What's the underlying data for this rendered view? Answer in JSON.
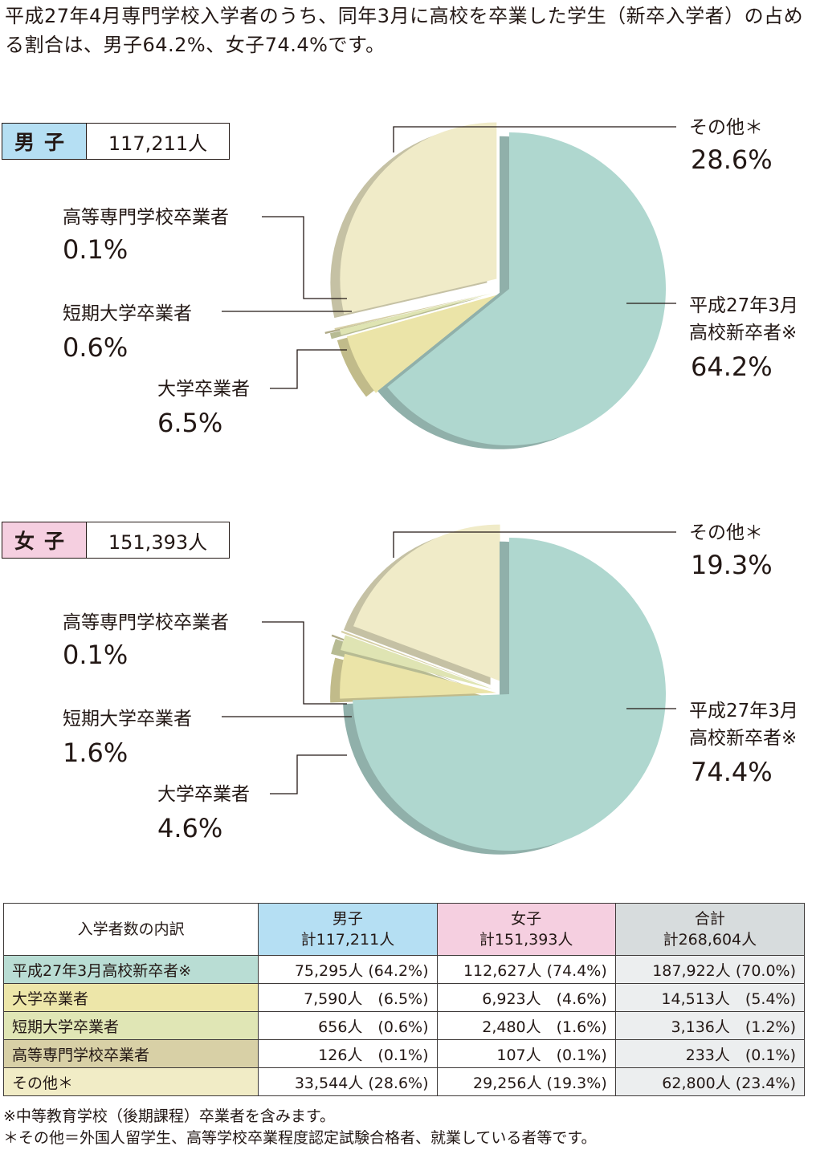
{
  "intro": "平成27年4月専門学校入学者のうち、同年3月に高校を卒業した学生（新卒入学者）の占める割合は、男子64.2%、女子74.4%です。",
  "colors": {
    "shinsotsu": "#afd7cf",
    "daigaku": "#ebe4a8",
    "tanki": "#dfe4b3",
    "kosen": "#d6cfa5",
    "sonota": "#f0ebc8",
    "male_badge": "#b5dff3",
    "female_badge": "#f5cfe0",
    "total_header": "#d7dcdd"
  },
  "chart_data": [
    {
      "type": "pie",
      "gender": "男子",
      "total_label": "117,211人",
      "slices": [
        {
          "key": "shinsotsu",
          "label": "平成27年3月\n高校新卒者※",
          "value": 64.2,
          "pct_text": "64.2%"
        },
        {
          "key": "daigaku",
          "label": "大学卒業者",
          "value": 6.5,
          "pct_text": "6.5%"
        },
        {
          "key": "tanki",
          "label": "短期大学卒業者",
          "value": 0.6,
          "pct_text": "0.6%"
        },
        {
          "key": "kosen",
          "label": "高等専門学校卒業者",
          "value": 0.1,
          "pct_text": "0.1%"
        },
        {
          "key": "sonota",
          "label": "その他＊",
          "value": 28.6,
          "pct_text": "28.6%"
        }
      ]
    },
    {
      "type": "pie",
      "gender": "女子",
      "total_label": "151,393人",
      "slices": [
        {
          "key": "shinsotsu",
          "label": "平成27年3月\n高校新卒者※",
          "value": 74.4,
          "pct_text": "74.4%"
        },
        {
          "key": "daigaku",
          "label": "大学卒業者",
          "value": 4.6,
          "pct_text": "4.6%"
        },
        {
          "key": "tanki",
          "label": "短期大学卒業者",
          "value": 1.6,
          "pct_text": "1.6%"
        },
        {
          "key": "kosen",
          "label": "高等専門学校卒業者",
          "value": 0.1,
          "pct_text": "0.1%"
        },
        {
          "key": "sonota",
          "label": "その他＊",
          "value": 19.3,
          "pct_text": "19.3%"
        }
      ]
    }
  ],
  "table": {
    "headers": [
      "入学者数の内訳",
      "男子\n計117,211人",
      "女子\n計151,393人",
      "合計\n計268,604人"
    ],
    "rows": [
      {
        "key": "shinsotsu",
        "label": "平成27年3月高校新卒者※",
        "cells": [
          "75,295人 (64.2%)",
          "112,627人 (74.4%)",
          "187,922人 (70.0%)"
        ]
      },
      {
        "key": "daigaku",
        "label": "大学卒業者",
        "cells": [
          "7,590人　(6.5%)",
          "6,923人　(4.6%)",
          "14,513人　(5.4%)"
        ]
      },
      {
        "key": "tanki",
        "label": "短期大学卒業者",
        "cells": [
          "656人　(0.6%)",
          "2,480人　(1.6%)",
          "3,136人　(1.2%)"
        ]
      },
      {
        "key": "kosen",
        "label": "高等専門学校卒業者",
        "cells": [
          "126人　(0.1%)",
          "107人　(0.1%)",
          "233人　(0.1%)"
        ]
      },
      {
        "key": "sonota",
        "label": "その他＊",
        "cells": [
          "33,544人 (28.6%)",
          "29,256人 (19.3%)",
          "62,800人 (23.4%)"
        ]
      }
    ]
  },
  "notes": [
    "※中等教育学校（後期課程）卒業者を含みます。",
    "＊その他＝外国人留学生、高等学校卒業程度認定試験合格者、就業している者等です。"
  ]
}
